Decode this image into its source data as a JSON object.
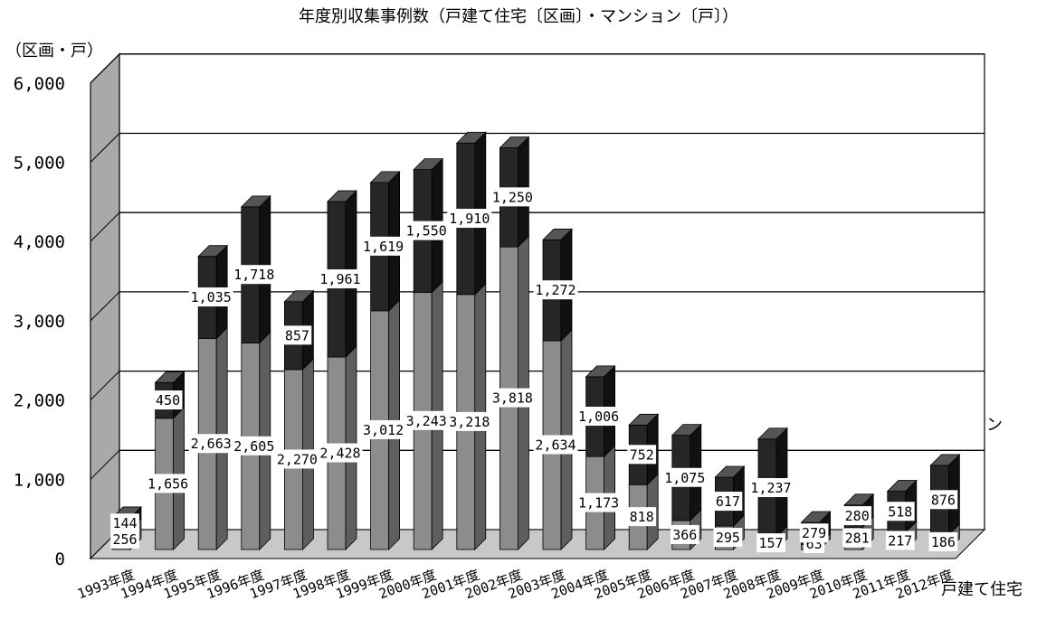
{
  "chart_data": {
    "type": "bar",
    "title": "年度別収集事例数（戸建て住宅〔区画〕・マンション〔戸〕）",
    "ylabel": "（区画・戸）",
    "ylim": [
      0,
      6000
    ],
    "yticks": [
      "0",
      "1,000",
      "2,000",
      "3,000",
      "4,000",
      "5,000",
      "6,000"
    ],
    "categories": [
      "1993年度",
      "1994年度",
      "1995年度",
      "1996年度",
      "1997年度",
      "1998年度",
      "1999年度",
      "2000年度",
      "2001年度",
      "2002年度",
      "2003年度",
      "2004年度",
      "2005年度",
      "2006年度",
      "2007年度",
      "2008年度",
      "2009年度",
      "2010年度",
      "2011年度",
      "2012年度"
    ],
    "series": [
      {
        "name": "戸建て住宅",
        "values": [
          256,
          1656,
          2663,
          2605,
          2270,
          2428,
          3012,
          3243,
          3218,
          3818,
          2634,
          1173,
          818,
          366,
          295,
          157,
          63,
          281,
          217,
          186
        ],
        "labels": [
          "256",
          "1,656",
          "2,663",
          "2,605",
          "2,270",
          "2,428",
          "3,012",
          "3,243",
          "3,218",
          "3,818",
          "2,634",
          "1,173",
          "818",
          "366",
          "295",
          "157",
          "63",
          "281",
          "217",
          "186"
        ]
      },
      {
        "name": "マンション",
        "values": [
          144,
          450,
          1035,
          1718,
          857,
          1961,
          1619,
          1550,
          1910,
          1250,
          1272,
          1006,
          752,
          1075,
          617,
          1237,
          279,
          280,
          518,
          876
        ],
        "labels": [
          "144",
          "450",
          "1,035",
          "1,718",
          "857",
          "1,961",
          "1,619",
          "1,550",
          "1,910",
          "1,250",
          "1,272",
          "1,006",
          "752",
          "1,075",
          "617",
          "1,237",
          "279",
          "280",
          "518",
          "876"
        ]
      }
    ],
    "grid": true,
    "colors": {
      "house_front": "#8c8c8c",
      "house_side": "#5e5e5e",
      "house_top": "#b4b4b4",
      "mansion_front": "#262626",
      "mansion_side": "#111111",
      "mansion_top": "#555555",
      "wall": "#ffffff",
      "side_wall": "#a9a9a9",
      "floor": "#c8c8c8"
    }
  }
}
